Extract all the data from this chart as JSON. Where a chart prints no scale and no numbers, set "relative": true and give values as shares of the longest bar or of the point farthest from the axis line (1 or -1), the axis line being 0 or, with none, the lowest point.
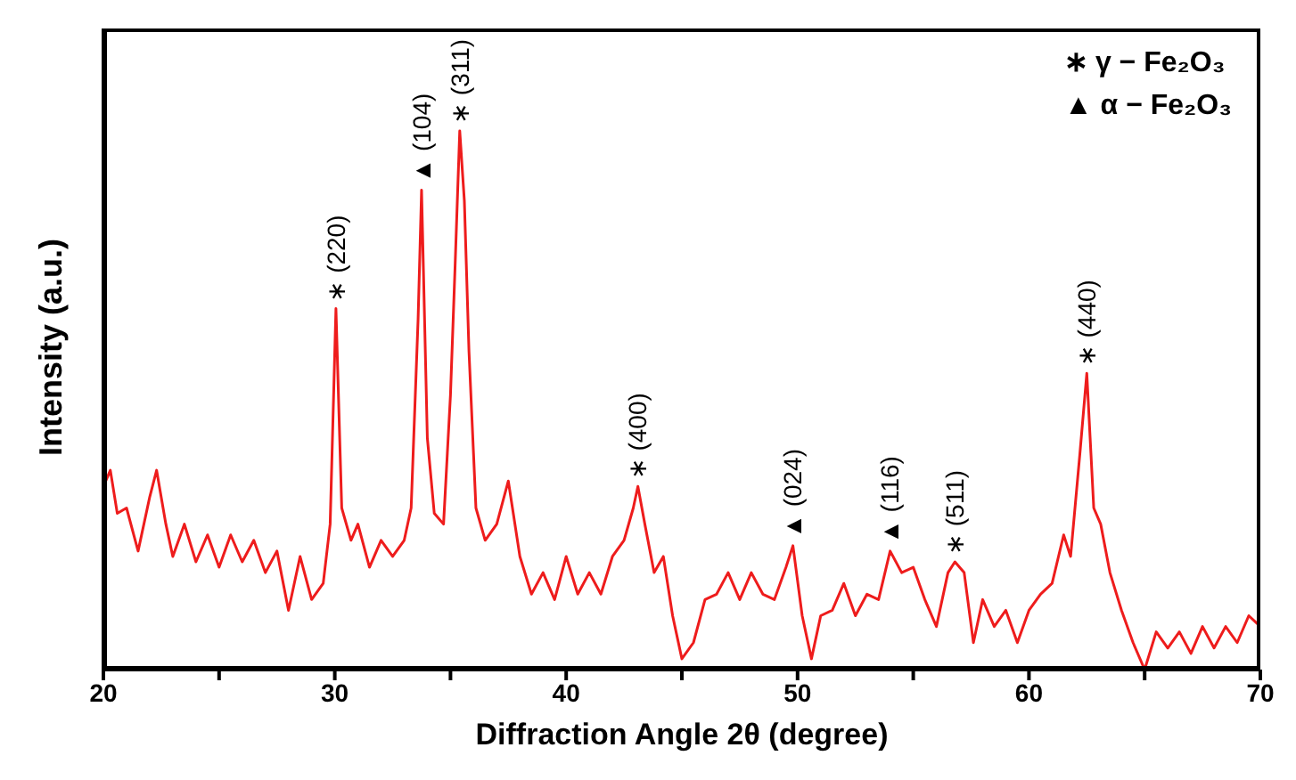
{
  "chart_data": {
    "type": "line",
    "relative": true,
    "xlabel": "Diffraction Angle 2θ (degree)",
    "ylabel": "Intensity (a.u.)",
    "x": [
      20,
      20.3,
      20.6,
      21,
      21.5,
      22,
      22.3,
      22.7,
      23,
      23.5,
      24,
      24.5,
      25,
      25.5,
      26,
      26.5,
      27,
      27.5,
      28,
      28.5,
      29,
      29.5,
      29.8,
      30.05,
      30.3,
      30.7,
      31,
      31.5,
      32,
      32.5,
      33,
      33.3,
      33.6,
      33.75,
      34,
      34.3,
      34.7,
      35,
      35.2,
      35.4,
      35.6,
      35.8,
      36.1,
      36.5,
      37,
      37.5,
      38,
      38.5,
      39,
      39.5,
      40,
      40.5,
      41,
      41.5,
      42,
      42.5,
      42.9,
      43.1,
      43.4,
      43.8,
      44.2,
      44.6,
      45,
      45.5,
      46,
      46.5,
      47,
      47.5,
      48,
      48.5,
      49,
      49.5,
      49.8,
      50.2,
      50.6,
      51,
      51.5,
      52,
      52.5,
      53,
      53.5,
      54,
      54.5,
      55,
      55.5,
      56,
      56.5,
      56.8,
      57.2,
      57.6,
      58,
      58.5,
      59,
      59.5,
      60,
      60.5,
      61,
      61.5,
      61.8,
      62.2,
      62.5,
      62.8,
      63.1,
      63.5,
      64,
      64.5,
      65,
      65.5,
      66,
      66.5,
      67,
      67.5,
      68,
      68.5,
      69,
      69.5,
      70
    ],
    "series": [
      {
        "color": "#ee1c1c",
        "values": [
          0.34,
          0.37,
          0.29,
          0.3,
          0.22,
          0.32,
          0.37,
          0.27,
          0.21,
          0.27,
          0.2,
          0.25,
          0.19,
          0.25,
          0.2,
          0.24,
          0.18,
          0.22,
          0.11,
          0.21,
          0.13,
          0.16,
          0.27,
          0.67,
          0.3,
          0.24,
          0.27,
          0.19,
          0.24,
          0.21,
          0.24,
          0.3,
          0.65,
          0.89,
          0.43,
          0.29,
          0.27,
          0.51,
          0.75,
          1,
          0.87,
          0.59,
          0.3,
          0.24,
          0.27,
          0.35,
          0.21,
          0.14,
          0.18,
          0.13,
          0.21,
          0.14,
          0.18,
          0.14,
          0.21,
          0.24,
          0.3,
          0.34,
          0.27,
          0.18,
          0.21,
          0.1,
          0.02,
          0.05,
          0.13,
          0.14,
          0.18,
          0.13,
          0.18,
          0.14,
          0.13,
          0.19,
          0.23,
          0.1,
          0.02,
          0.1,
          0.11,
          0.16,
          0.1,
          0.14,
          0.13,
          0.22,
          0.18,
          0.19,
          0.13,
          0.08,
          0.18,
          0.2,
          0.18,
          0.05,
          0.13,
          0.08,
          0.11,
          0.05,
          0.11,
          0.14,
          0.16,
          0.25,
          0.21,
          0.4,
          0.55,
          0.3,
          0.27,
          0.18,
          0.11,
          0.05,
          0,
          0.07,
          0.04,
          0.07,
          0.03,
          0.08,
          0.04,
          0.08,
          0.05,
          0.1,
          0.08
        ]
      }
    ],
    "xlim": [
      20,
      70
    ],
    "xticks": [
      20,
      {
        "value": 25,
        "label": null
      },
      30,
      {
        "value": 35,
        "label": null
      },
      40,
      {
        "value": 45,
        "label": null
      },
      50,
      {
        "value": 55,
        "label": null
      },
      60,
      {
        "value": 65,
        "label": null
      },
      70
    ],
    "grid": false,
    "legend": false,
    "marker": "none",
    "line_style": "solid",
    "annotations": [
      {
        "text": "∗ (220)",
        "x": 30.05,
        "y": 0.67
      },
      {
        "text": "▲ (104)",
        "x": 33.75,
        "y": 0.89
      },
      {
        "text": "∗ (311)",
        "x": 35.4,
        "y": 1
      },
      {
        "text": "∗ (400)",
        "x": 43.1,
        "y": 0.34
      },
      {
        "text": "▲ (024)",
        "x": 49.8,
        "y": 0.23
      },
      {
        "text": "▲ (116)",
        "x": 54,
        "y": 0.22
      },
      {
        "text": "∗ (511)",
        "x": 56.8,
        "y": 0.2
      },
      {
        "text": "∗ (440)",
        "x": 62.5,
        "y": 0.55
      },
      "∗ γ − Fe₂O₃",
      "▲ α − Fe₂O₃"
    ]
  }
}
